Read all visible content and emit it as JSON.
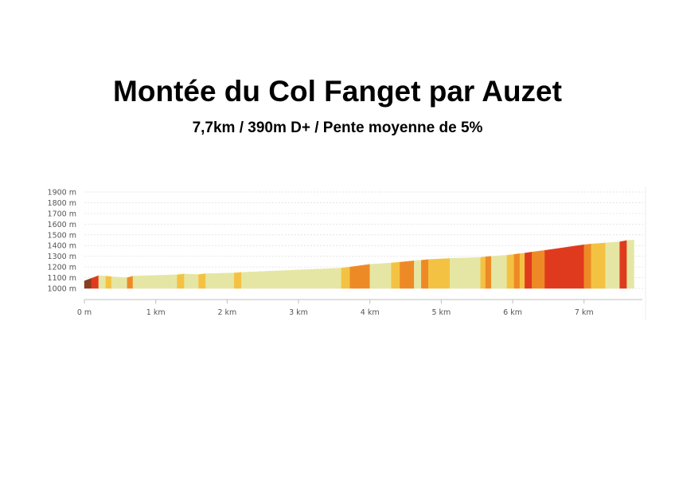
{
  "header": {
    "title": "Montée du Col Fanget par Auzet",
    "subtitle": "7,7km / 390m D+ / Pente moyenne de 5%"
  },
  "colors": {
    "grade_colors": {
      "very_easy": "#e5e6a3",
      "easy": "#f4c242",
      "moderate": "#ee8a26",
      "hard": "#e03a1e",
      "very_hard": "#8b3d20"
    },
    "grid": "#e6e6e6"
  },
  "chart_data": {
    "type": "area",
    "title": "",
    "xlabel": "",
    "ylabel": "",
    "xlim": [
      0,
      7.75
    ],
    "ylim": [
      1000,
      1900
    ],
    "y_ticks": [
      "1000 m",
      "1100 m",
      "1200 m",
      "1300 m",
      "1400 m",
      "1500 m",
      "1600 m",
      "1700 m",
      "1800 m",
      "1900 m"
    ],
    "y_tick_values": [
      1000,
      1100,
      1200,
      1300,
      1400,
      1500,
      1600,
      1700,
      1800,
      1900
    ],
    "x_ticks": [
      "0 m",
      "1 km",
      "2 km",
      "3 km",
      "4 km",
      "5 km",
      "6 km",
      "7 km"
    ],
    "x_tick_values": [
      0,
      1,
      2,
      3,
      4,
      5,
      6,
      7
    ],
    "grid": true,
    "segments": [
      {
        "start": 0.0,
        "end": 0.1,
        "elev_start": 1070,
        "elev_end": 1095,
        "grade": "very_hard"
      },
      {
        "start": 0.1,
        "end": 0.2,
        "elev_start": 1095,
        "elev_end": 1120,
        "grade": "hard"
      },
      {
        "start": 0.2,
        "end": 0.3,
        "elev_start": 1120,
        "elev_end": 1115,
        "grade": "very_easy"
      },
      {
        "start": 0.3,
        "end": 0.38,
        "elev_start": 1115,
        "elev_end": 1110,
        "grade": "easy"
      },
      {
        "start": 0.38,
        "end": 0.6,
        "elev_start": 1110,
        "elev_end": 1100,
        "grade": "very_easy"
      },
      {
        "start": 0.6,
        "end": 0.68,
        "elev_start": 1100,
        "elev_end": 1115,
        "grade": "moderate"
      },
      {
        "start": 0.68,
        "end": 1.3,
        "elev_start": 1115,
        "elev_end": 1128,
        "grade": "very_easy"
      },
      {
        "start": 1.3,
        "end": 1.4,
        "elev_start": 1128,
        "elev_end": 1135,
        "grade": "easy"
      },
      {
        "start": 1.4,
        "end": 1.6,
        "elev_start": 1135,
        "elev_end": 1130,
        "grade": "very_easy"
      },
      {
        "start": 1.6,
        "end": 1.7,
        "elev_start": 1130,
        "elev_end": 1138,
        "grade": "easy"
      },
      {
        "start": 1.7,
        "end": 2.1,
        "elev_start": 1138,
        "elev_end": 1145,
        "grade": "very_easy"
      },
      {
        "start": 2.1,
        "end": 2.2,
        "elev_start": 1145,
        "elev_end": 1150,
        "grade": "easy"
      },
      {
        "start": 2.2,
        "end": 3.6,
        "elev_start": 1150,
        "elev_end": 1190,
        "grade": "very_easy"
      },
      {
        "start": 3.6,
        "end": 3.72,
        "elev_start": 1190,
        "elev_end": 1200,
        "grade": "easy"
      },
      {
        "start": 3.72,
        "end": 4.0,
        "elev_start": 1200,
        "elev_end": 1225,
        "grade": "moderate"
      },
      {
        "start": 4.0,
        "end": 4.3,
        "elev_start": 1225,
        "elev_end": 1238,
        "grade": "very_easy"
      },
      {
        "start": 4.3,
        "end": 4.42,
        "elev_start": 1238,
        "elev_end": 1245,
        "grade": "easy"
      },
      {
        "start": 4.42,
        "end": 4.62,
        "elev_start": 1245,
        "elev_end": 1258,
        "grade": "moderate"
      },
      {
        "start": 4.62,
        "end": 4.72,
        "elev_start": 1258,
        "elev_end": 1263,
        "grade": "very_easy"
      },
      {
        "start": 4.72,
        "end": 4.82,
        "elev_start": 1263,
        "elev_end": 1270,
        "grade": "moderate"
      },
      {
        "start": 4.82,
        "end": 5.12,
        "elev_start": 1270,
        "elev_end": 1280,
        "grade": "easy"
      },
      {
        "start": 5.12,
        "end": 5.55,
        "elev_start": 1280,
        "elev_end": 1290,
        "grade": "very_easy"
      },
      {
        "start": 5.55,
        "end": 5.62,
        "elev_start": 1290,
        "elev_end": 1295,
        "grade": "easy"
      },
      {
        "start": 5.62,
        "end": 5.7,
        "elev_start": 1295,
        "elev_end": 1300,
        "grade": "moderate"
      },
      {
        "start": 5.7,
        "end": 5.92,
        "elev_start": 1300,
        "elev_end": 1310,
        "grade": "very_easy"
      },
      {
        "start": 5.92,
        "end": 6.02,
        "elev_start": 1310,
        "elev_end": 1318,
        "grade": "easy"
      },
      {
        "start": 6.02,
        "end": 6.1,
        "elev_start": 1318,
        "elev_end": 1325,
        "grade": "moderate"
      },
      {
        "start": 6.1,
        "end": 6.17,
        "elev_start": 1325,
        "elev_end": 1330,
        "grade": "easy"
      },
      {
        "start": 6.17,
        "end": 6.27,
        "elev_start": 1330,
        "elev_end": 1340,
        "grade": "hard"
      },
      {
        "start": 6.27,
        "end": 6.45,
        "elev_start": 1340,
        "elev_end": 1355,
        "grade": "moderate"
      },
      {
        "start": 6.45,
        "end": 7.0,
        "elev_start": 1355,
        "elev_end": 1408,
        "grade": "hard"
      },
      {
        "start": 7.0,
        "end": 7.1,
        "elev_start": 1408,
        "elev_end": 1415,
        "grade": "moderate"
      },
      {
        "start": 7.1,
        "end": 7.3,
        "elev_start": 1415,
        "elev_end": 1425,
        "grade": "easy"
      },
      {
        "start": 7.3,
        "end": 7.5,
        "elev_start": 1425,
        "elev_end": 1435,
        "grade": "very_easy"
      },
      {
        "start": 7.5,
        "end": 7.6,
        "elev_start": 1435,
        "elev_end": 1448,
        "grade": "hard"
      },
      {
        "start": 7.6,
        "end": 7.7,
        "elev_start": 1448,
        "elev_end": 1452,
        "grade": "very_easy"
      }
    ]
  }
}
